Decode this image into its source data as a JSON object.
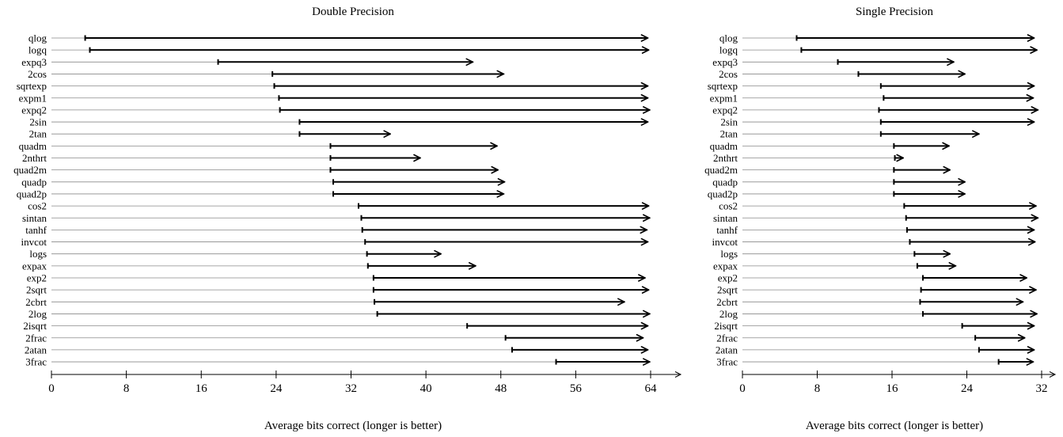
{
  "chart_data": [
    {
      "type": "arrow-interval",
      "title": "Double Precision",
      "xlabel": "Average bits correct (longer is better)",
      "ylabel": "",
      "xlim": [
        0,
        66
      ],
      "xticks": [
        0,
        8,
        16,
        24,
        32,
        40,
        48,
        56,
        64
      ],
      "categories": [
        "qlog",
        "logq",
        "expq3",
        "2cos",
        "sqrtexp",
        "expm1",
        "expq2",
        "2sin",
        "2tan",
        "quadm",
        "2nthrt",
        "quad2m",
        "quadp",
        "quad2p",
        "cos2",
        "sintan",
        "tanhf",
        "invcot",
        "logs",
        "expax",
        "exp2",
        "2sqrt",
        "2cbrt",
        "2log",
        "2isqrt",
        "2frac",
        "2atan",
        "3frac"
      ],
      "start": [
        3.6,
        4.1,
        17.8,
        23.6,
        23.8,
        24.3,
        24.4,
        26.5,
        26.5,
        29.8,
        29.8,
        29.8,
        30.1,
        30.1,
        32.8,
        33.1,
        33.2,
        33.5,
        33.7,
        33.8,
        34.4,
        34.4,
        34.5,
        34.8,
        44.4,
        48.5,
        49.2,
        53.9
      ],
      "end": [
        63.7,
        63.8,
        45.0,
        48.3,
        63.7,
        63.7,
        63.9,
        63.7,
        36.2,
        47.6,
        39.4,
        47.7,
        48.4,
        48.3,
        63.8,
        63.9,
        63.6,
        63.7,
        41.6,
        45.3,
        63.4,
        63.8,
        61.2,
        63.9,
        63.7,
        63.2,
        63.7,
        63.9
      ]
    },
    {
      "type": "arrow-interval",
      "title": "Single Precision",
      "xlabel": "Average bits correct (longer is better)",
      "ylabel": "",
      "xlim": [
        0,
        33
      ],
      "xticks": [
        0,
        8,
        16,
        24,
        32
      ],
      "categories": [
        "qlog",
        "logq",
        "expq3",
        "2cos",
        "sqrtexp",
        "expm1",
        "expq2",
        "2sin",
        "2tan",
        "quadm",
        "2nthrt",
        "quad2m",
        "quadp",
        "quad2p",
        "cos2",
        "sintan",
        "tanhf",
        "invcot",
        "logs",
        "expax",
        "exp2",
        "2sqrt",
        "2cbrt",
        "2log",
        "2isqrt",
        "2frac",
        "2atan",
        "3frac"
      ],
      "start": [
        5.8,
        6.3,
        10.2,
        12.4,
        14.8,
        15.1,
        14.6,
        14.8,
        14.8,
        16.2,
        16.3,
        16.2,
        16.2,
        16.2,
        17.3,
        17.5,
        17.6,
        17.9,
        18.4,
        18.7,
        19.3,
        19.1,
        19.0,
        19.3,
        23.5,
        24.9,
        25.3,
        27.4
      ],
      "end": [
        31.2,
        31.5,
        22.6,
        23.8,
        31.2,
        31.1,
        31.6,
        31.2,
        25.3,
        22.1,
        17.2,
        22.2,
        23.8,
        23.8,
        31.4,
        31.6,
        31.2,
        31.3,
        22.2,
        22.8,
        30.4,
        31.4,
        30.0,
        31.5,
        31.2,
        30.2,
        31.2,
        31.1
      ]
    }
  ]
}
